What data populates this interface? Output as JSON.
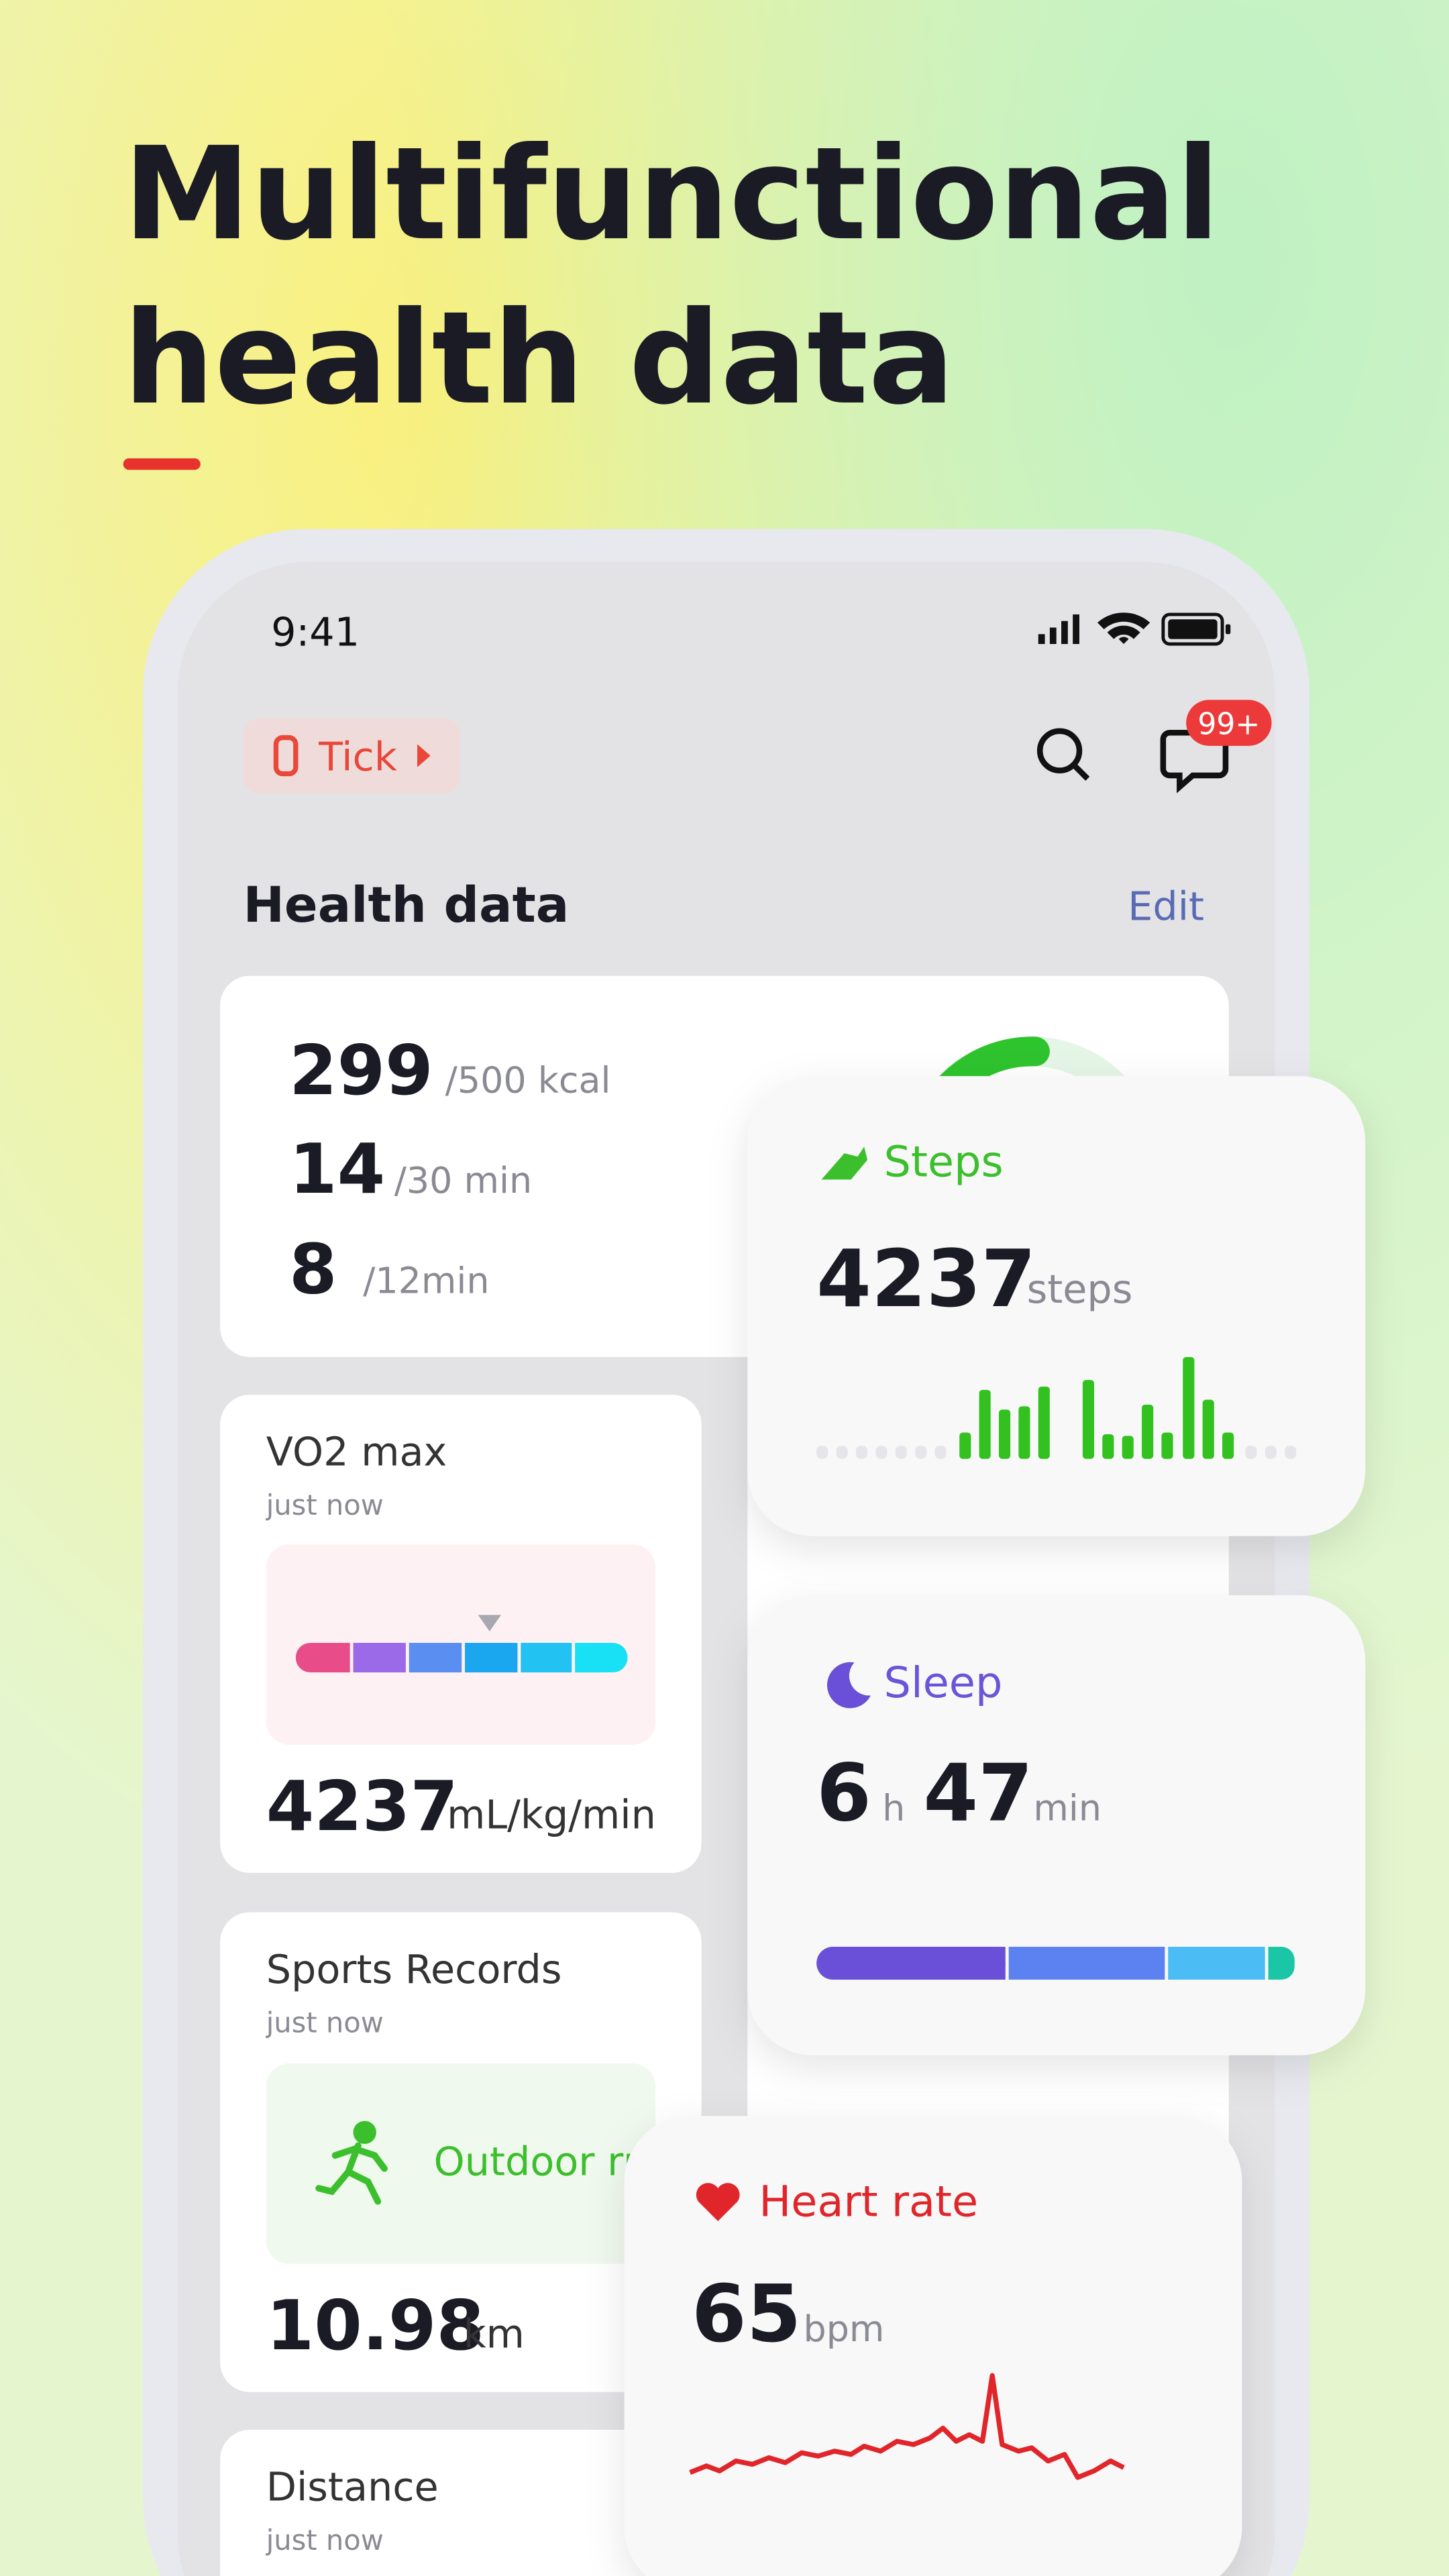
{
  "header": {
    "title_lines": [
      "Multifunctional",
      "health data"
    ]
  },
  "status_bar": {
    "time": "9:41"
  },
  "toolbar": {
    "device": "Tick",
    "badge": "99+"
  },
  "section": {
    "title": "Health data",
    "action": "Edit"
  },
  "activity": {
    "rows": [
      [
        "299",
        "/500 kcal"
      ],
      [
        "14",
        "/30 min"
      ],
      [
        "8",
        "/12min"
      ]
    ]
  },
  "vo2": {
    "title": "VO2 max",
    "time": "just now",
    "value": "4237",
    "unit": "mL/kg/min"
  },
  "sports": {
    "title": "Sports Records",
    "time": "just now",
    "activity": "Outdoor run",
    "value": "10.98",
    "unit": "km"
  },
  "distance": {
    "title": "Distance",
    "time": "just now"
  },
  "steps": {
    "title": "Steps",
    "value": "4237",
    "unit": "steps"
  },
  "sleep": {
    "title": "Sleep",
    "hours": "6",
    "hours_unit": "h",
    "minutes": "47",
    "minutes_unit": "min"
  },
  "heart": {
    "title": "Heart rate",
    "value": "65",
    "unit": "bpm"
  }
}
